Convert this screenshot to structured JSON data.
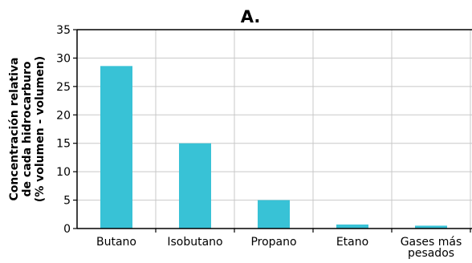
{
  "chart_data": {
    "type": "bar",
    "title": "A.",
    "ylabel_lines": [
      "Concentración relativa",
      "de cada hidrocarburo",
      "(% volumen - volumen)"
    ],
    "xlabel": "",
    "categories": [
      {
        "lines": [
          "Butano"
        ]
      },
      {
        "lines": [
          "Isobutano"
        ]
      },
      {
        "lines": [
          "Propano"
        ]
      },
      {
        "lines": [
          "Etano"
        ]
      },
      {
        "lines": [
          "Gases más",
          "pesados"
        ]
      }
    ],
    "values": [
      28.6,
      15.0,
      5.0,
      0.7,
      0.5
    ],
    "ylim": [
      0,
      35
    ],
    "yticks": [
      0,
      5,
      10,
      15,
      20,
      25,
      30,
      35
    ],
    "grid": true,
    "legend": "none",
    "colors": {
      "bar": "#38c2d6",
      "grid": "#c8c8c8",
      "axis": "#000000"
    }
  }
}
